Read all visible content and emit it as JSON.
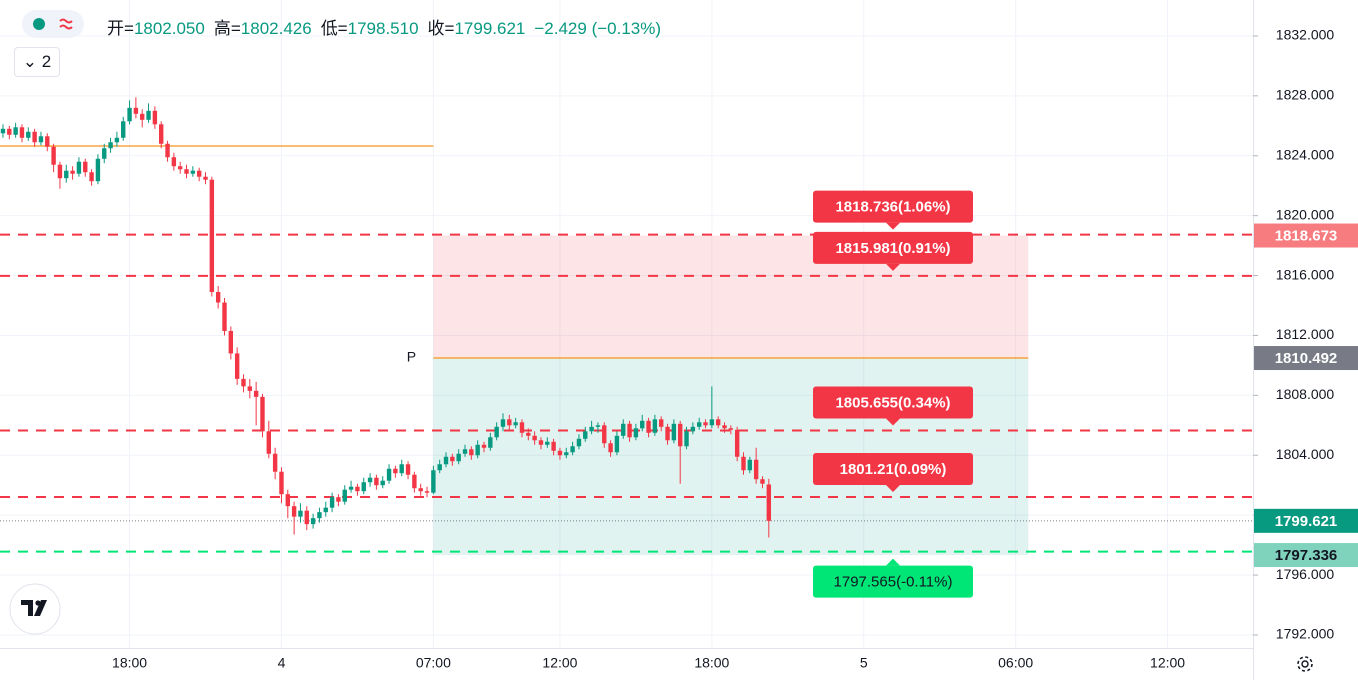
{
  "header": {
    "items": [
      {
        "label": "开=",
        "value": "1802.050"
      },
      {
        "label": "高=",
        "value": "1802.426"
      },
      {
        "label": "低=",
        "value": "1798.510"
      },
      {
        "label": "收=",
        "value": "1799.621"
      }
    ],
    "change": "−2.429 (−0.13%)"
  },
  "toolbar": {
    "collapse_label": "2"
  },
  "chart_data": {
    "type": "candlestick",
    "up_color": "#089981",
    "down_color": "#f23645",
    "grid": true,
    "xlim": [
      -0.47,
      197.5
    ],
    "ylim": [
      1791.33,
      1834.4
    ],
    "xticks": [
      {
        "value": 20,
        "label": "18:00"
      },
      {
        "value": 44,
        "label": "4"
      },
      {
        "value": 68,
        "label": "07:00"
      },
      {
        "value": 88,
        "label": "12:00"
      },
      {
        "value": 112,
        "label": "18:00"
      },
      {
        "value": 136,
        "label": "5"
      },
      {
        "value": 160,
        "label": "06:00"
      },
      {
        "value": 184,
        "label": "12:00"
      }
    ],
    "yticks": [
      {
        "value": 1792,
        "label": "1792.000"
      },
      {
        "value": 1796,
        "label": "1796.000"
      },
      {
        "value": 1800,
        "label": "1800.000"
      },
      {
        "value": 1804,
        "label": "1804.000"
      },
      {
        "value": 1808,
        "label": "1808.000"
      },
      {
        "value": 1812,
        "label": "1812.000"
      },
      {
        "value": 1816,
        "label": "1816.000"
      },
      {
        "value": 1820,
        "label": "1820.000"
      },
      {
        "value": 1824,
        "label": "1824.000"
      },
      {
        "value": 1828,
        "label": "1828.000"
      },
      {
        "value": 1832,
        "label": "1832.000"
      }
    ],
    "x": [
      0,
      1,
      2,
      3,
      4,
      5,
      6,
      7,
      8,
      9,
      10,
      11,
      12,
      13,
      14,
      15,
      16,
      17,
      18,
      19,
      20,
      21,
      22,
      23,
      24,
      25,
      26,
      27,
      28,
      29,
      30,
      31,
      32,
      33,
      34,
      35,
      36,
      37,
      38,
      39,
      40,
      41,
      42,
      43,
      44,
      45,
      46,
      47,
      48,
      49,
      50,
      51,
      52,
      53,
      54,
      55,
      56,
      57,
      58,
      59,
      60,
      61,
      62,
      63,
      64,
      65,
      66,
      67,
      68,
      69,
      70,
      71,
      72,
      73,
      74,
      75,
      76,
      77,
      78,
      79,
      80,
      81,
      82,
      83,
      84,
      85,
      86,
      87,
      88,
      89,
      90,
      91,
      92,
      93,
      94,
      95,
      96,
      97,
      98,
      99,
      100,
      101,
      102,
      103,
      104,
      105,
      106,
      107,
      108,
      109,
      110,
      111,
      112,
      113,
      114,
      115,
      116,
      117,
      118,
      119,
      120,
      121
    ],
    "ohlc": [
      [
        1825.5,
        1826.1,
        1825.2,
        1825.8
      ],
      [
        1825.8,
        1826.0,
        1825.1,
        1825.4
      ],
      [
        1825.4,
        1826.2,
        1825.2,
        1825.9
      ],
      [
        1825.9,
        1826.1,
        1824.9,
        1825.2
      ],
      [
        1825.2,
        1825.9,
        1825.0,
        1825.6
      ],
      [
        1825.6,
        1825.8,
        1824.6,
        1824.9
      ],
      [
        1824.9,
        1825.6,
        1824.7,
        1825.3
      ],
      [
        1825.3,
        1825.5,
        1824.3,
        1824.6
      ],
      [
        1824.6,
        1824.8,
        1822.9,
        1823.4
      ],
      [
        1823.4,
        1823.6,
        1821.8,
        1822.5
      ],
      [
        1822.5,
        1823.4,
        1822.2,
        1823.0
      ],
      [
        1823.0,
        1823.3,
        1822.4,
        1822.8
      ],
      [
        1822.8,
        1823.9,
        1822.6,
        1823.6
      ],
      [
        1823.6,
        1823.8,
        1822.6,
        1822.9
      ],
      [
        1822.9,
        1823.1,
        1822.0,
        1822.3
      ],
      [
        1822.3,
        1824.1,
        1822.1,
        1823.8
      ],
      [
        1823.8,
        1824.8,
        1823.5,
        1824.5
      ],
      [
        1824.5,
        1825.2,
        1824.2,
        1824.9
      ],
      [
        1824.9,
        1825.6,
        1824.6,
        1825.2
      ],
      [
        1825.2,
        1826.6,
        1825.0,
        1826.3
      ],
      [
        1826.3,
        1827.7,
        1826.1,
        1827.2
      ],
      [
        1827.2,
        1827.9,
        1826.5,
        1826.8
      ],
      [
        1826.8,
        1827.1,
        1825.9,
        1826.4
      ],
      [
        1826.4,
        1827.5,
        1826.2,
        1827.0
      ],
      [
        1827.0,
        1827.3,
        1825.8,
        1826.1
      ],
      [
        1826.1,
        1826.3,
        1824.5,
        1824.8
      ],
      [
        1824.8,
        1825.0,
        1823.6,
        1823.9
      ],
      [
        1823.9,
        1824.2,
        1823.0,
        1823.3
      ],
      [
        1823.3,
        1823.6,
        1822.8,
        1823.1
      ],
      [
        1823.1,
        1823.4,
        1822.5,
        1822.8
      ],
      [
        1822.8,
        1823.3,
        1822.6,
        1823.0
      ],
      [
        1823.0,
        1823.2,
        1822.3,
        1822.6
      ],
      [
        1822.6,
        1822.9,
        1822.1,
        1822.4
      ],
      [
        1822.4,
        1822.6,
        1814.6,
        1814.9
      ],
      [
        1814.9,
        1815.3,
        1813.8,
        1814.2
      ],
      [
        1814.2,
        1814.5,
        1812.0,
        1812.3
      ],
      [
        1812.3,
        1812.6,
        1810.4,
        1810.8
      ],
      [
        1810.8,
        1811.2,
        1808.7,
        1809.1
      ],
      [
        1809.1,
        1809.4,
        1808.2,
        1808.6
      ],
      [
        1808.6,
        1809.1,
        1807.8,
        1808.3
      ],
      [
        1808.3,
        1808.9,
        1806.0,
        1807.9
      ],
      [
        1807.9,
        1808.1,
        1805.2,
        1805.6
      ],
      [
        1805.6,
        1806.3,
        1803.8,
        1804.1
      ],
      [
        1804.1,
        1804.5,
        1802.4,
        1802.9
      ],
      [
        1802.9,
        1803.2,
        1800.8,
        1801.4
      ],
      [
        1801.4,
        1801.7,
        1799.8,
        1800.6
      ],
      [
        1800.6,
        1800.9,
        1798.7,
        1799.9
      ],
      [
        1799.9,
        1800.8,
        1799.5,
        1800.3
      ],
      [
        1800.3,
        1800.6,
        1799.0,
        1799.4
      ],
      [
        1799.4,
        1800.1,
        1799.1,
        1799.8
      ],
      [
        1799.8,
        1800.5,
        1799.5,
        1800.2
      ],
      [
        1800.2,
        1800.9,
        1799.9,
        1800.5
      ],
      [
        1800.5,
        1801.5,
        1800.2,
        1801.2
      ],
      [
        1801.2,
        1801.4,
        1800.6,
        1800.9
      ],
      [
        1800.9,
        1802.0,
        1800.7,
        1801.7
      ],
      [
        1801.7,
        1802.3,
        1801.5,
        1801.9
      ],
      [
        1801.9,
        1802.1,
        1801.3,
        1801.6
      ],
      [
        1801.6,
        1802.5,
        1801.4,
        1802.2
      ],
      [
        1802.2,
        1802.8,
        1801.9,
        1802.5
      ],
      [
        1802.5,
        1802.7,
        1801.7,
        1802.0
      ],
      [
        1802.0,
        1802.6,
        1801.8,
        1802.3
      ],
      [
        1802.3,
        1803.4,
        1802.1,
        1803.1
      ],
      [
        1803.1,
        1803.3,
        1802.5,
        1802.8
      ],
      [
        1802.8,
        1803.7,
        1802.6,
        1803.4
      ],
      [
        1803.4,
        1803.6,
        1802.4,
        1802.7
      ],
      [
        1802.7,
        1802.9,
        1801.5,
        1801.8
      ],
      [
        1801.8,
        1802.1,
        1801.3,
        1801.6
      ],
      [
        1801.6,
        1801.9,
        1801.2,
        1801.5
      ],
      [
        1801.5,
        1803.3,
        1801.4,
        1803.0
      ],
      [
        1803.0,
        1803.7,
        1802.8,
        1803.4
      ],
      [
        1803.4,
        1804.2,
        1803.2,
        1803.9
      ],
      [
        1803.9,
        1804.1,
        1803.3,
        1803.6
      ],
      [
        1803.6,
        1804.4,
        1803.4,
        1804.1
      ],
      [
        1804.1,
        1804.7,
        1803.9,
        1804.4
      ],
      [
        1804.4,
        1804.6,
        1803.7,
        1804.0
      ],
      [
        1804.0,
        1805.0,
        1803.8,
        1804.7
      ],
      [
        1804.7,
        1804.9,
        1804.2,
        1804.5
      ],
      [
        1804.5,
        1805.5,
        1804.3,
        1805.2
      ],
      [
        1805.2,
        1806.2,
        1805.0,
        1805.9
      ],
      [
        1805.9,
        1806.8,
        1805.6,
        1806.4
      ],
      [
        1806.4,
        1806.7,
        1805.7,
        1806.0
      ],
      [
        1806.0,
        1806.5,
        1805.8,
        1806.2
      ],
      [
        1806.2,
        1806.4,
        1805.2,
        1805.5
      ],
      [
        1805.5,
        1805.8,
        1805.0,
        1805.3
      ],
      [
        1805.3,
        1805.6,
        1804.7,
        1805.0
      ],
      [
        1805.0,
        1805.2,
        1804.4,
        1804.7
      ],
      [
        1804.7,
        1805.2,
        1804.5,
        1804.9
      ],
      [
        1804.9,
        1805.1,
        1804.0,
        1804.3
      ],
      [
        1804.3,
        1804.5,
        1803.7,
        1804.0
      ],
      [
        1804.0,
        1804.5,
        1803.8,
        1804.2
      ],
      [
        1804.2,
        1804.9,
        1804.0,
        1804.6
      ],
      [
        1804.6,
        1805.4,
        1804.4,
        1805.1
      ],
      [
        1805.1,
        1805.9,
        1804.9,
        1805.6
      ],
      [
        1805.6,
        1806.3,
        1805.4,
        1805.9
      ],
      [
        1805.9,
        1806.2,
        1805.5,
        1806.0
      ],
      [
        1806.0,
        1806.2,
        1804.5,
        1804.8
      ],
      [
        1804.8,
        1805.0,
        1803.9,
        1804.2
      ],
      [
        1804.2,
        1805.6,
        1804.0,
        1805.3
      ],
      [
        1805.3,
        1806.4,
        1805.1,
        1806.1
      ],
      [
        1806.1,
        1806.3,
        1804.9,
        1805.2
      ],
      [
        1805.2,
        1806.1,
        1805.0,
        1805.8
      ],
      [
        1805.8,
        1806.7,
        1805.6,
        1806.3
      ],
      [
        1806.3,
        1806.5,
        1805.2,
        1805.5
      ],
      [
        1805.5,
        1806.7,
        1805.3,
        1806.4
      ],
      [
        1806.4,
        1806.6,
        1805.6,
        1805.9
      ],
      [
        1805.9,
        1806.1,
        1804.7,
        1805.0
      ],
      [
        1805.0,
        1806.4,
        1804.8,
        1806.1
      ],
      [
        1806.1,
        1806.3,
        1802.1,
        1804.6
      ],
      [
        1804.6,
        1805.9,
        1804.4,
        1805.6
      ],
      [
        1805.6,
        1806.2,
        1805.4,
        1805.9
      ],
      [
        1805.9,
        1806.5,
        1805.7,
        1806.2
      ],
      [
        1806.2,
        1806.4,
        1805.8,
        1806.0
      ],
      [
        1806.0,
        1808.6,
        1805.8,
        1806.4
      ],
      [
        1806.4,
        1806.6,
        1805.8,
        1806.0
      ],
      [
        1806.0,
        1806.2,
        1805.5,
        1805.8
      ],
      [
        1805.8,
        1806.0,
        1805.4,
        1805.7
      ],
      [
        1805.7,
        1805.9,
        1803.6,
        1803.9
      ],
      [
        1803.9,
        1804.2,
        1802.7,
        1803.0
      ],
      [
        1803.0,
        1803.9,
        1802.8,
        1803.7
      ],
      [
        1803.7,
        1804.5,
        1802.1,
        1802.4
      ],
      [
        1802.4,
        1802.6,
        1801.8,
        1802.1
      ],
      [
        1802.05,
        1802.426,
        1798.51,
        1799.621
      ]
    ],
    "hline": {
      "value": 1824.65,
      "from": -0.47,
      "to": 68,
      "color": "#f7931a"
    },
    "position": {
      "entry": 1810.492,
      "target": 1818.673,
      "stop": 1797.336,
      "from": 68,
      "to": 162,
      "label": "P",
      "color": "#f7931a"
    },
    "levels": [
      {
        "value": 1818.736,
        "label": "1818.736(1.06%)",
        "color": "#f23645",
        "side": "above"
      },
      {
        "value": 1815.981,
        "label": "1815.981(0.91%)",
        "color": "#f23645",
        "side": "above"
      },
      {
        "value": 1805.655,
        "label": "1805.655(0.34%)",
        "color": "#f23645",
        "side": "above"
      },
      {
        "value": 1801.21,
        "label": "1801.21(0.09%)",
        "color": "#f23645",
        "side": "above"
      },
      {
        "value": 1797.565,
        "label": "1797.565(-0.11%)",
        "color": "#00e676",
        "side": "below"
      }
    ],
    "price_tags": [
      {
        "value": 1818.673,
        "label": "1818.673",
        "color": "#f77c80",
        "text_color": "#ffffff"
      },
      {
        "value": 1810.492,
        "label": "1810.492",
        "color": "#787b86",
        "text_color": "#ffffff"
      },
      {
        "value": 1799.621,
        "label": "1799.621",
        "color": "#089981",
        "text_color": "#ffffff",
        "dotted": true
      },
      {
        "value": 1797.336,
        "label": "1797.336",
        "color": "#7fd3bd",
        "text_color": "#131722"
      }
    ]
  }
}
